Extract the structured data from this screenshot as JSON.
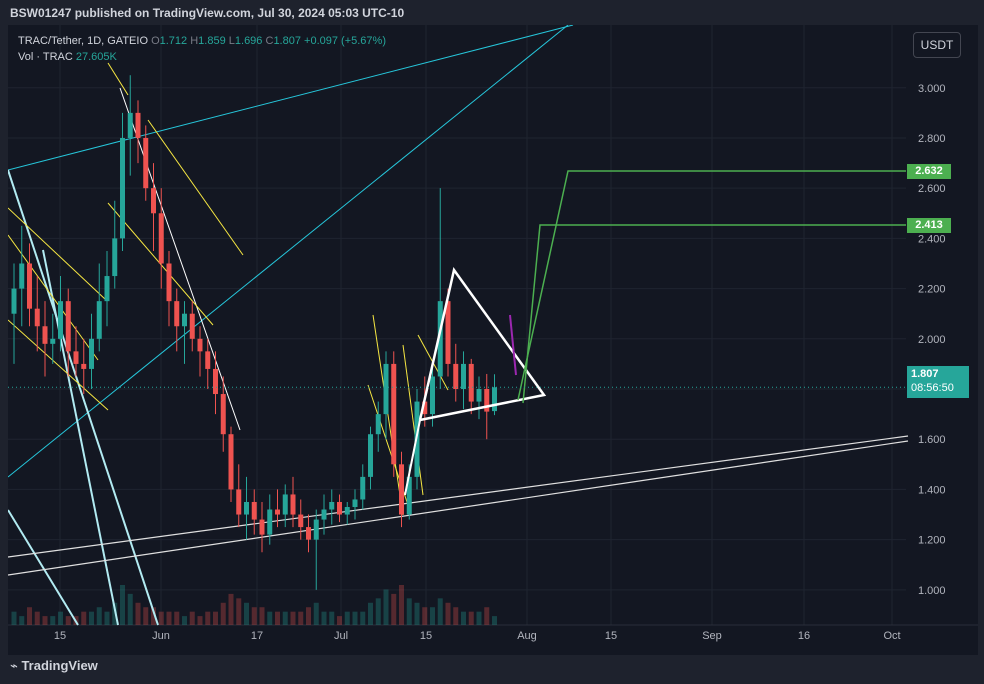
{
  "header": {
    "publish_line": "BSW01247 published on TradingView.com, Jul 30, 2024 05:03 UTC-10"
  },
  "legend": {
    "symbol": "TRAC/Tether, 1D, GATEIO",
    "open_label": "O",
    "open": "1.712",
    "high_label": "H",
    "high": "1.859",
    "low_label": "L",
    "low": "1.696",
    "close_label": "C",
    "close": "1.807",
    "change": "+0.097 (+5.67%)",
    "vol_label": "Vol · TRAC",
    "vol_value": "27.605K"
  },
  "unit_button": "USDT",
  "footer": {
    "brand": "TradingView"
  },
  "price_tags": {
    "current_price": "1.807",
    "countdown": "08:56:50",
    "target_1": "2.632",
    "target_2": "2.413"
  },
  "colors": {
    "up": "#26a69a",
    "down": "#ef5350",
    "target": "#4caf50",
    "channel": "#26c6da",
    "triangle": "#ffffff",
    "pattern": "#f5e642"
  },
  "chart_data": {
    "type": "candlestick",
    "y_ticks": [
      "3.000",
      "2.800",
      "2.600",
      "2.400",
      "2.200",
      "2.000",
      "1.800",
      "1.600",
      "1.400",
      "1.200",
      "1.000"
    ],
    "x_ticks": [
      "15",
      "Jun",
      "17",
      "Jul",
      "15",
      "Aug",
      "15",
      "Sep",
      "16",
      "Oct"
    ],
    "ylim": [
      0.86,
      3.25
    ],
    "ohlc": [
      [
        2.1,
        2.3,
        1.9,
        2.2
      ],
      [
        2.2,
        2.45,
        2.05,
        2.3
      ],
      [
        2.3,
        2.38,
        2.05,
        2.12
      ],
      [
        2.12,
        2.25,
        1.95,
        2.05
      ],
      [
        2.05,
        2.15,
        1.85,
        1.98
      ],
      [
        1.98,
        2.1,
        1.9,
        2.0
      ],
      [
        2.0,
        2.25,
        1.95,
        2.15
      ],
      [
        2.15,
        2.2,
        1.85,
        1.95
      ],
      [
        1.95,
        2.05,
        1.85,
        1.9
      ],
      [
        1.9,
        2.0,
        1.78,
        1.88
      ],
      [
        1.88,
        2.1,
        1.8,
        2.0
      ],
      [
        2.0,
        2.3,
        1.95,
        2.15
      ],
      [
        2.15,
        2.35,
        2.05,
        2.25
      ],
      [
        2.25,
        2.55,
        2.2,
        2.4
      ],
      [
        2.4,
        2.9,
        2.35,
        2.8
      ],
      [
        2.8,
        3.05,
        2.65,
        2.9
      ],
      [
        2.9,
        2.95,
        2.7,
        2.8
      ],
      [
        2.8,
        2.85,
        2.55,
        2.6
      ],
      [
        2.6,
        2.7,
        2.35,
        2.5
      ],
      [
        2.5,
        2.6,
        2.2,
        2.3
      ],
      [
        2.3,
        2.35,
        2.05,
        2.15
      ],
      [
        2.15,
        2.2,
        1.95,
        2.05
      ],
      [
        2.05,
        2.15,
        1.9,
        2.1
      ],
      [
        2.1,
        2.15,
        1.95,
        2.0
      ],
      [
        2.0,
        2.05,
        1.85,
        1.95
      ],
      [
        1.95,
        2.0,
        1.8,
        1.88
      ],
      [
        1.88,
        1.95,
        1.7,
        1.78
      ],
      [
        1.78,
        1.85,
        1.55,
        1.62
      ],
      [
        1.62,
        1.65,
        1.35,
        1.4
      ],
      [
        1.4,
        1.5,
        1.25,
        1.3
      ],
      [
        1.3,
        1.45,
        1.2,
        1.35
      ],
      [
        1.35,
        1.4,
        1.22,
        1.28
      ],
      [
        1.28,
        1.35,
        1.15,
        1.22
      ],
      [
        1.22,
        1.38,
        1.18,
        1.32
      ],
      [
        1.32,
        1.4,
        1.25,
        1.3
      ],
      [
        1.3,
        1.42,
        1.25,
        1.38
      ],
      [
        1.38,
        1.45,
        1.25,
        1.3
      ],
      [
        1.3,
        1.36,
        1.2,
        1.25
      ],
      [
        1.25,
        1.3,
        1.15,
        1.2
      ],
      [
        1.2,
        1.32,
        1.0,
        1.28
      ],
      [
        1.28,
        1.38,
        1.22,
        1.32
      ],
      [
        1.32,
        1.4,
        1.26,
        1.35
      ],
      [
        1.35,
        1.38,
        1.27,
        1.3
      ],
      [
        1.3,
        1.35,
        1.26,
        1.33
      ],
      [
        1.33,
        1.4,
        1.28,
        1.36
      ],
      [
        1.36,
        1.5,
        1.32,
        1.45
      ],
      [
        1.45,
        1.65,
        1.4,
        1.62
      ],
      [
        1.62,
        1.75,
        1.55,
        1.7
      ],
      [
        1.7,
        1.95,
        1.6,
        1.9
      ],
      [
        1.9,
        1.95,
        1.45,
        1.5
      ],
      [
        1.5,
        1.55,
        1.25,
        1.3
      ],
      [
        1.3,
        1.5,
        1.28,
        1.45
      ],
      [
        1.45,
        1.8,
        1.4,
        1.75
      ],
      [
        1.75,
        1.85,
        1.65,
        1.7
      ],
      [
        1.7,
        1.9,
        1.65,
        1.85
      ],
      [
        1.85,
        2.6,
        1.8,
        2.15
      ],
      [
        2.15,
        2.2,
        1.85,
        1.9
      ],
      [
        1.9,
        1.98,
        1.75,
        1.8
      ],
      [
        1.8,
        1.95,
        1.72,
        1.9
      ],
      [
        1.9,
        1.92,
        1.7,
        1.75
      ],
      [
        1.75,
        1.85,
        1.68,
        1.8
      ],
      [
        1.8,
        1.86,
        1.6,
        1.71
      ],
      [
        1.712,
        1.859,
        1.696,
        1.807
      ]
    ],
    "volumes": [
      3,
      2,
      4,
      3,
      2,
      2,
      3,
      2,
      2,
      3,
      3,
      4,
      3,
      5,
      9,
      7,
      5,
      4,
      4,
      3,
      3,
      3,
      2,
      3,
      2,
      3,
      3,
      5,
      7,
      6,
      5,
      4,
      4,
      3,
      3,
      3,
      3,
      3,
      4,
      5,
      3,
      3,
      2,
      3,
      3,
      3,
      5,
      6,
      8,
      7,
      9,
      6,
      5,
      4,
      4,
      6,
      5,
      4,
      3,
      3,
      3,
      4,
      2
    ],
    "volume_label": "27.605K",
    "annotations": [
      "triangle",
      "ascending channel",
      "target 2.632",
      "target 2.413"
    ]
  }
}
